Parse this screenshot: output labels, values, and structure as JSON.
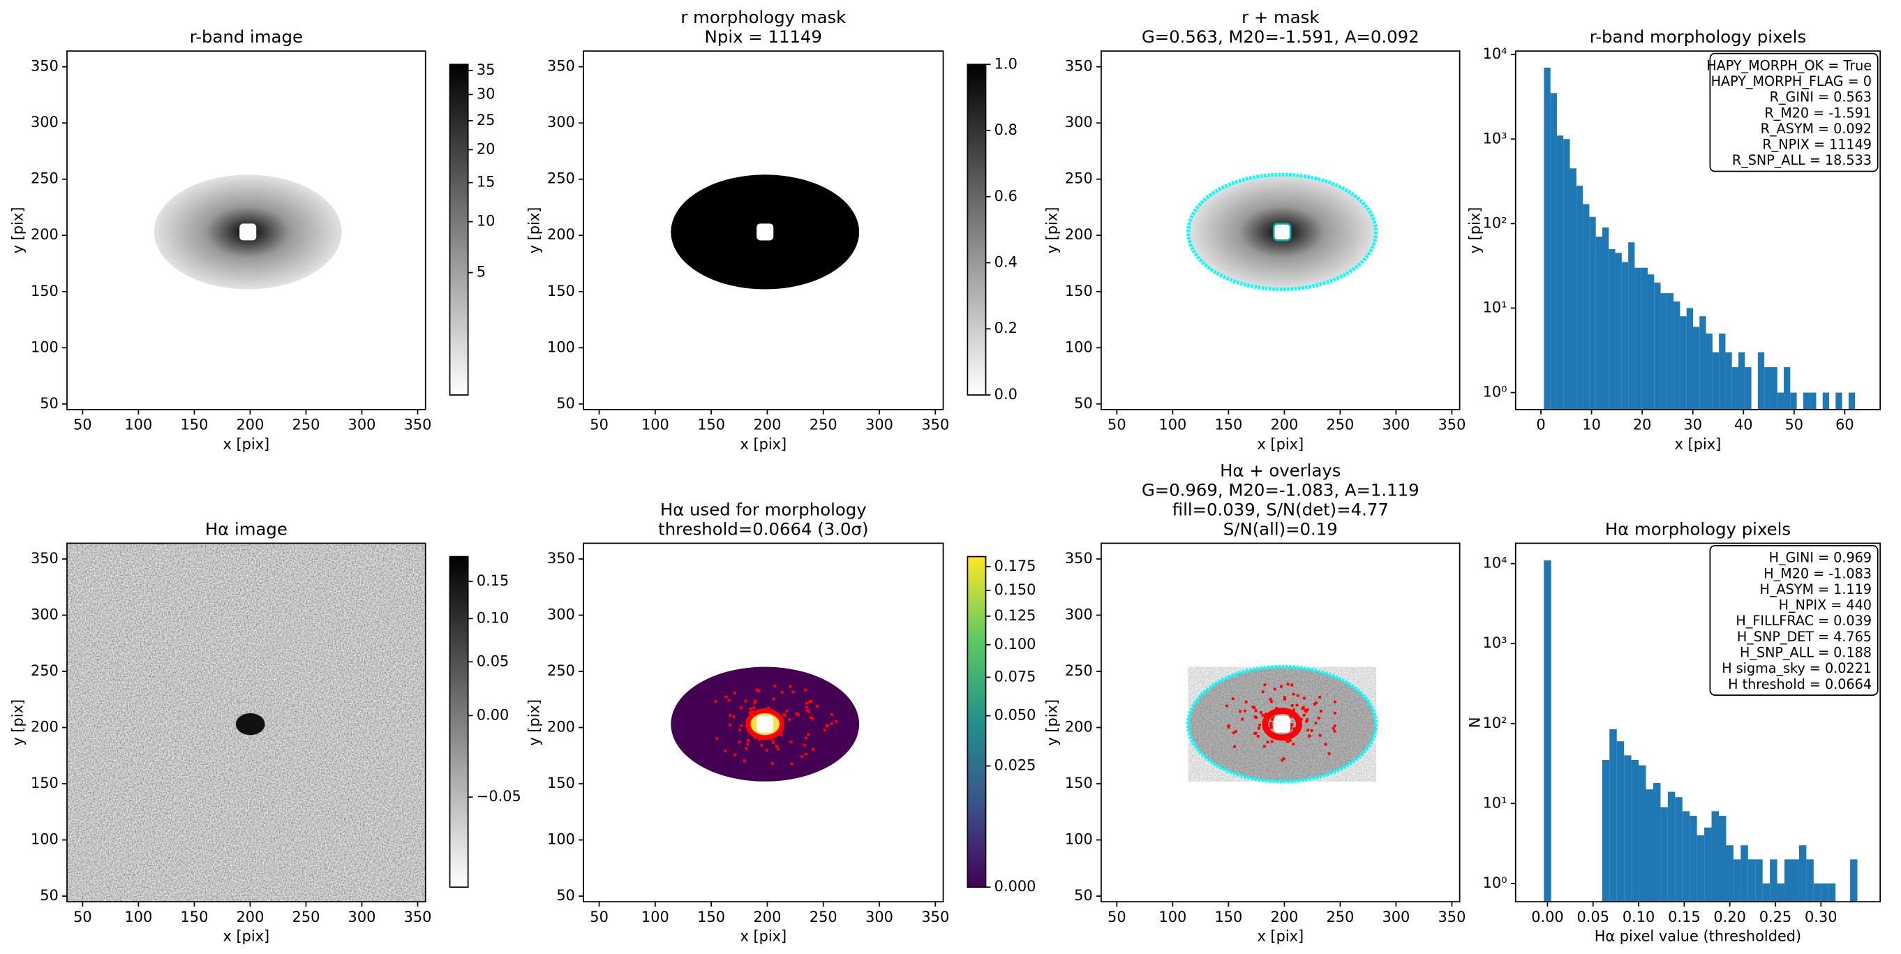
{
  "chart_data": [
    {
      "type": "image",
      "title": [
        "r-band image"
      ],
      "xlabel": "x [pix]",
      "ylabel": "y [pix]",
      "xlim": [
        36,
        357
      ],
      "ylim": [
        45,
        364
      ],
      "xticks": [
        50,
        100,
        150,
        200,
        250,
        300,
        350
      ],
      "yticks": [
        50,
        100,
        150,
        200,
        250,
        300,
        350
      ],
      "cmap": "gray_r",
      "colorbar": {
        "lim": [
          0.03,
          36.3
        ],
        "scale": "sqrt",
        "ticks": [
          5,
          10,
          15,
          20,
          25,
          30,
          35
        ]
      }
    },
    {
      "type": "image",
      "title": [
        "r morphology mask",
        "Npix = 11149"
      ],
      "xlabel": "x [pix]",
      "ylabel": "y [pix]",
      "xlim": [
        36,
        357
      ],
      "ylim": [
        45,
        364
      ],
      "xticks": [
        50,
        100,
        150,
        200,
        250,
        300,
        350
      ],
      "yticks": [
        50,
        100,
        150,
        200,
        250,
        300,
        350
      ],
      "cmap": "gray_r",
      "colorbar": {
        "lim": [
          0,
          1
        ],
        "scale": "linear",
        "ticks": [
          {
            "value": 0,
            "label": "0.0"
          },
          0.2,
          0.4,
          0.6,
          0.8,
          {
            "value": 1,
            "label": "1.0"
          }
        ]
      }
    },
    {
      "type": "image",
      "title": [
        "r + mask",
        "G=0.563, M20=-1.591, A=0.092"
      ],
      "xlabel": "x [pix]",
      "ylabel": "y [pix]",
      "xlim": [
        36,
        357
      ],
      "ylim": [
        45,
        364
      ],
      "xticks": [
        50,
        100,
        150,
        200,
        250,
        300,
        350
      ],
      "yticks": [
        50,
        100,
        150,
        200,
        250,
        300,
        350
      ],
      "cmap": "gray_r"
    },
    {
      "type": "histogram",
      "title": [
        "r-band morphology pixels"
      ],
      "xlabel": "x [pix]",
      "ylabel": "y [pix]",
      "color": "#1f77b4",
      "bins": [
        0.6,
        1.88,
        3.16,
        4.44,
        5.72,
        7.0,
        8.28,
        9.56,
        10.84,
        12.12,
        13.4,
        14.68,
        15.96,
        17.24,
        18.52,
        19.8,
        21.08,
        22.36,
        23.64,
        24.92,
        26.2,
        27.48,
        28.76,
        30.04,
        31.32,
        32.6,
        33.88,
        35.16,
        36.44,
        37.72,
        39.0,
        40.28,
        41.56,
        42.84,
        44.12,
        45.4,
        46.68,
        47.96,
        49.24,
        50.52,
        51.8,
        53.08,
        54.36,
        55.64,
        56.92,
        58.2,
        59.48,
        60.76,
        62.04
      ],
      "counts": [
        7000,
        3500,
        1100,
        1000,
        450,
        280,
        170,
        120,
        70,
        90,
        50,
        45,
        35,
        60,
        30,
        30,
        25,
        20,
        15,
        15,
        12,
        8,
        10,
        6,
        8,
        5,
        3,
        5,
        3,
        2,
        3,
        2,
        0,
        3,
        2,
        2,
        1,
        2,
        1,
        0,
        1,
        1,
        0,
        1,
        0,
        1,
        0,
        1
      ],
      "xlim": [
        -5,
        67
      ],
      "ylim": [
        0.63,
        11000
      ],
      "xticks": [
        0,
        10,
        20,
        30,
        40,
        50,
        60
      ],
      "yscale": "log",
      "yticks": [
        {
          "value": 1,
          "label": "10⁰"
        },
        {
          "value": 10,
          "label": "10¹"
        },
        {
          "value": 100,
          "label": "10²"
        },
        {
          "value": 1000,
          "label": "10³"
        },
        {
          "value": 10000,
          "label": "10⁴"
        }
      ],
      "annotation_corner": "upper right",
      "annotation": [
        "HAPY_MORPH_OK = True",
        "HAPY_MORPH_FLAG = 0",
        "R_GINI = 0.563",
        "R_M20 = -1.591",
        "R_ASYM = 0.092",
        "R_NPIX = 11149",
        "R_SNP_ALL = 18.533"
      ]
    },
    {
      "type": "image",
      "title": [
        "Hα image"
      ],
      "xlabel": "x [pix]",
      "ylabel": "y [pix]",
      "xlim": [
        36,
        357
      ],
      "ylim": [
        45,
        364
      ],
      "xticks": [
        50,
        100,
        150,
        200,
        250,
        300,
        350
      ],
      "yticks": [
        50,
        100,
        150,
        200,
        250,
        300,
        350
      ],
      "cmap": "gray_r",
      "colorbar": {
        "lim": [
          -0.069,
          0.187
        ],
        "scale": "sqrt",
        "ticks": [
          {
            "value": -0.05,
            "label": "−0.05"
          },
          {
            "value": 0,
            "label": "0.00"
          },
          0.05,
          {
            "value": 0.1,
            "label": "0.10"
          },
          0.15
        ]
      }
    },
    {
      "type": "image",
      "title": [
        "Hα used for morphology",
        "threshold=0.0664 (3.0σ)"
      ],
      "xlabel": "x [pix]",
      "ylabel": "y [pix]",
      "xlim": [
        36,
        357
      ],
      "ylim": [
        45,
        364
      ],
      "xticks": [
        50,
        100,
        150,
        200,
        250,
        300,
        350
      ],
      "yticks": [
        50,
        100,
        150,
        200,
        250,
        300,
        350
      ],
      "cmap": "viridis",
      "colorbar": {
        "lim": [
          0,
          0.186
        ],
        "scale": "sqrt",
        "ticks": [
          {
            "value": 0,
            "label": "0.000"
          },
          0.025,
          {
            "value": 0.05,
            "label": "0.050"
          },
          0.075,
          {
            "value": 0.1,
            "label": "0.100"
          },
          0.125,
          {
            "value": 0.15,
            "label": "0.150"
          },
          0.175
        ]
      }
    },
    {
      "type": "image",
      "title": [
        "Hα + overlays",
        "G=0.969, M20=-1.083, A=1.119",
        "fill=0.039, S/N(det)=4.77",
        "S/N(all)=0.19"
      ],
      "xlabel": "x [pix]",
      "ylabel": "y [pix]",
      "xlim": [
        36,
        357
      ],
      "ylim": [
        45,
        364
      ],
      "xticks": [
        50,
        100,
        150,
        200,
        250,
        300,
        350
      ],
      "yticks": [
        50,
        100,
        150,
        200,
        250,
        300,
        350
      ],
      "cmap": "gray_r"
    },
    {
      "type": "histogram",
      "title": [
        "Hα morphology pixels"
      ],
      "xlabel": "Hα pixel value (thresholded)",
      "ylabel": "N",
      "color": "#1f77b4",
      "bins": [
        -0.004,
        0.004,
        0.012,
        0.02,
        0.028,
        0.036,
        0.044,
        0.052,
        0.06,
        0.068,
        0.076,
        0.084,
        0.092,
        0.1,
        0.108,
        0.116,
        0.124,
        0.132,
        0.14,
        0.148,
        0.156,
        0.164,
        0.172,
        0.18,
        0.188,
        0.196,
        0.204,
        0.212,
        0.22,
        0.228,
        0.236,
        0.244,
        0.252,
        0.26,
        0.268,
        0.276,
        0.284,
        0.292,
        0.3,
        0.308,
        0.316,
        0.324,
        0.332,
        0.34
      ],
      "counts": [
        11000,
        0,
        0,
        0,
        0,
        0,
        0,
        0,
        35,
        85,
        60,
        40,
        35,
        30,
        15,
        18,
        9,
        14,
        12,
        8,
        7,
        4,
        5,
        8,
        7,
        3,
        2,
        3,
        2,
        2,
        1,
        2,
        1,
        2,
        2,
        3,
        2,
        1,
        1,
        1,
        0,
        0,
        2
      ],
      "xlim": [
        -0.035,
        0.365
      ],
      "ylim": [
        0.59,
        18000
      ],
      "yscale": "log",
      "xticks": [
        {
          "value": 0,
          "label": "0.00"
        },
        0.05,
        {
          "value": 0.1,
          "label": "0.10"
        },
        0.15,
        {
          "value": 0.2,
          "label": "0.20"
        },
        0.25,
        {
          "value": 0.3,
          "label": "0.30"
        }
      ],
      "yticks": [
        {
          "value": 1,
          "label": "10⁰"
        },
        {
          "value": 10,
          "label": "10¹"
        },
        {
          "value": 100,
          "label": "10²"
        },
        {
          "value": 1000,
          "label": "10³"
        },
        {
          "value": 10000,
          "label": "10⁴"
        }
      ],
      "annotation_corner": "upper right",
      "annotation": [
        "H_GINI = 0.969",
        "H_M20 = -1.083",
        "H_ASYM = 1.119",
        "H_NPIX = 440",
        "H_FILLFRAC = 0.039",
        "H_SNP_DET = 4.765",
        "H_SNP_ALL = 0.188",
        "H sigma_sky = 0.0221",
        "H threshold = 0.0664"
      ]
    }
  ]
}
